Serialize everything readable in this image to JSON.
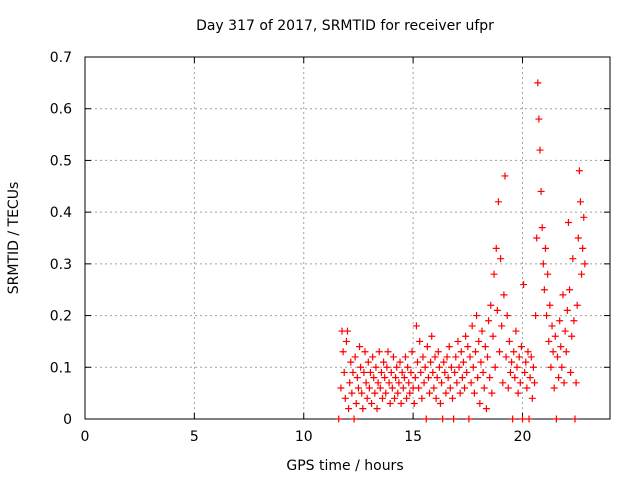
{
  "chart_data": {
    "type": "scatter",
    "title": "Day 317 of 2017, SRMTID for receiver ufpr",
    "xlabel": "GPS time / hours",
    "ylabel": "SRMTID / TECUs",
    "xlim": [
      0,
      24
    ],
    "ylim": [
      0,
      0.7
    ],
    "x_ticks": [
      "0",
      "5",
      "10",
      "15",
      "20"
    ],
    "x_tick_values": [
      0,
      5,
      10,
      15,
      20
    ],
    "y_ticks": [
      "0",
      "0.1",
      "0.2",
      "0.3",
      "0.4",
      "0.5",
      "0.6",
      "0.7"
    ],
    "y_tick_values": [
      0,
      0.1,
      0.2,
      0.3,
      0.4,
      0.5,
      0.6,
      0.7
    ],
    "grid": true,
    "marker": "+",
    "color": "#ff0000",
    "series": [
      {
        "name": "SRMTID",
        "points": [
          [
            11.6,
            0.0
          ],
          [
            11.7,
            0.06
          ],
          [
            11.75,
            0.17
          ],
          [
            11.8,
            0.13
          ],
          [
            11.85,
            0.09
          ],
          [
            11.9,
            0.04
          ],
          [
            11.95,
            0.15
          ],
          [
            12.0,
            0.17
          ],
          [
            12.05,
            0.02
          ],
          [
            12.1,
            0.07
          ],
          [
            12.15,
            0.11
          ],
          [
            12.2,
            0.05
          ],
          [
            12.25,
            0.09
          ],
          [
            12.3,
            0.0
          ],
          [
            12.35,
            0.12
          ],
          [
            12.4,
            0.03
          ],
          [
            12.45,
            0.08
          ],
          [
            12.5,
            0.06
          ],
          [
            12.55,
            0.14
          ],
          [
            12.6,
            0.1
          ],
          [
            12.65,
            0.05
          ],
          [
            12.7,
            0.02
          ],
          [
            12.75,
            0.09
          ],
          [
            12.8,
            0.13
          ],
          [
            12.85,
            0.07
          ],
          [
            12.9,
            0.04
          ],
          [
            12.95,
            0.11
          ],
          [
            13.0,
            0.06
          ],
          [
            13.05,
            0.09
          ],
          [
            13.1,
            0.03
          ],
          [
            13.15,
            0.12
          ],
          [
            13.2,
            0.08
          ],
          [
            13.25,
            0.05
          ],
          [
            13.3,
            0.1
          ],
          [
            13.35,
            0.02
          ],
          [
            13.4,
            0.07
          ],
          [
            13.45,
            0.13
          ],
          [
            13.5,
            0.06
          ],
          [
            13.55,
            0.09
          ],
          [
            13.6,
            0.04
          ],
          [
            13.65,
            0.11
          ],
          [
            13.7,
            0.08
          ],
          [
            13.75,
            0.05
          ],
          [
            13.8,
            0.1
          ],
          [
            13.85,
            0.13
          ],
          [
            13.9,
            0.07
          ],
          [
            13.95,
            0.03
          ],
          [
            14.0,
            0.09
          ],
          [
            14.05,
            0.06
          ],
          [
            14.1,
            0.12
          ],
          [
            14.15,
            0.04
          ],
          [
            14.2,
            0.08
          ],
          [
            14.25,
            0.1
          ],
          [
            14.3,
            0.05
          ],
          [
            14.35,
            0.07
          ],
          [
            14.4,
            0.11
          ],
          [
            14.45,
            0.03
          ],
          [
            14.5,
            0.09
          ],
          [
            14.55,
            0.06
          ],
          [
            14.6,
            0.08
          ],
          [
            14.65,
            0.12
          ],
          [
            14.7,
            0.04
          ],
          [
            14.75,
            0.1
          ],
          [
            14.8,
            0.07
          ],
          [
            14.85,
            0.05
          ],
          [
            14.9,
            0.09
          ],
          [
            14.95,
            0.13
          ],
          [
            15.0,
            0.06
          ],
          [
            15.05,
            0.03
          ],
          [
            15.1,
            0.08
          ],
          [
            15.15,
            0.18
          ],
          [
            15.2,
            0.11
          ],
          [
            15.25,
            0.06
          ],
          [
            15.3,
            0.15
          ],
          [
            15.35,
            0.09
          ],
          [
            15.4,
            0.04
          ],
          [
            15.45,
            0.12
          ],
          [
            15.5,
            0.07
          ],
          [
            15.55,
            0.1
          ],
          [
            15.6,
            0.0
          ],
          [
            15.65,
            0.14
          ],
          [
            15.7,
            0.08
          ],
          [
            15.75,
            0.05
          ],
          [
            15.8,
            0.11
          ],
          [
            15.85,
            0.16
          ],
          [
            15.9,
            0.09
          ],
          [
            15.95,
            0.06
          ],
          [
            16.0,
            0.12
          ],
          [
            16.05,
            0.04
          ],
          [
            16.1,
            0.08
          ],
          [
            16.15,
            0.13
          ],
          [
            16.2,
            0.1
          ],
          [
            16.25,
            0.03
          ],
          [
            16.3,
            0.07
          ],
          [
            16.35,
            0.0
          ],
          [
            16.4,
            0.11
          ],
          [
            16.45,
            0.09
          ],
          [
            16.5,
            0.05
          ],
          [
            16.55,
            0.12
          ],
          [
            16.6,
            0.08
          ],
          [
            16.65,
            0.14
          ],
          [
            16.7,
            0.06
          ],
          [
            16.75,
            0.1
          ],
          [
            16.8,
            0.04
          ],
          [
            16.85,
            0.0
          ],
          [
            16.9,
            0.09
          ],
          [
            16.95,
            0.12
          ],
          [
            17.0,
            0.07
          ],
          [
            17.05,
            0.15
          ],
          [
            17.1,
            0.1
          ],
          [
            17.15,
            0.05
          ],
          [
            17.2,
            0.13
          ],
          [
            17.25,
            0.08
          ],
          [
            17.3,
            0.11
          ],
          [
            17.35,
            0.06
          ],
          [
            17.4,
            0.16
          ],
          [
            17.45,
            0.09
          ],
          [
            17.5,
            0.14
          ],
          [
            17.55,
            0.0
          ],
          [
            17.6,
            0.12
          ],
          [
            17.65,
            0.07
          ],
          [
            17.7,
            0.18
          ],
          [
            17.75,
            0.1
          ],
          [
            17.8,
            0.05
          ],
          [
            17.85,
            0.13
          ],
          [
            17.9,
            0.2
          ],
          [
            17.95,
            0.08
          ],
          [
            18.0,
            0.15
          ],
          [
            18.05,
            0.03
          ],
          [
            18.1,
            0.11
          ],
          [
            18.15,
            0.17
          ],
          [
            18.2,
            0.09
          ],
          [
            18.25,
            0.06
          ],
          [
            18.3,
            0.14
          ],
          [
            18.35,
            0.02
          ],
          [
            18.4,
            0.12
          ],
          [
            18.45,
            0.19
          ],
          [
            18.5,
            0.08
          ],
          [
            18.55,
            0.22
          ],
          [
            18.6,
            0.05
          ],
          [
            18.65,
            0.16
          ],
          [
            18.7,
            0.28
          ],
          [
            18.75,
            0.1
          ],
          [
            18.8,
            0.33
          ],
          [
            18.85,
            0.21
          ],
          [
            18.9,
            0.42
          ],
          [
            18.95,
            0.13
          ],
          [
            19.0,
            0.31
          ],
          [
            19.05,
            0.18
          ],
          [
            19.1,
            0.07
          ],
          [
            19.15,
            0.24
          ],
          [
            19.2,
            0.47
          ],
          [
            19.25,
            0.12
          ],
          [
            19.3,
            0.2
          ],
          [
            19.35,
            0.06
          ],
          [
            19.4,
            0.15
          ],
          [
            19.45,
            0.09
          ],
          [
            19.5,
            0.11
          ],
          [
            19.55,
            0.0
          ],
          [
            19.6,
            0.13
          ],
          [
            19.65,
            0.08
          ],
          [
            19.7,
            0.17
          ],
          [
            19.75,
            0.1
          ],
          [
            19.8,
            0.05
          ],
          [
            19.85,
            0.12
          ],
          [
            19.9,
            0.07
          ],
          [
            19.95,
            0.14
          ],
          [
            20.0,
            0.0
          ],
          [
            20.05,
            0.26
          ],
          [
            20.1,
            0.09
          ],
          [
            20.15,
            0.11
          ],
          [
            20.2,
            0.06
          ],
          [
            20.25,
            0.13
          ],
          [
            20.3,
            0.0
          ],
          [
            20.35,
            0.08
          ],
          [
            20.4,
            0.12
          ],
          [
            20.45,
            0.04
          ],
          [
            20.5,
            0.1
          ],
          [
            20.55,
            0.07
          ],
          [
            20.6,
            0.2
          ],
          [
            20.65,
            0.35
          ],
          [
            20.7,
            0.65
          ],
          [
            20.75,
            0.58
          ],
          [
            20.8,
            0.52
          ],
          [
            20.85,
            0.44
          ],
          [
            20.9,
            0.37
          ],
          [
            20.95,
            0.3
          ],
          [
            21.0,
            0.25
          ],
          [
            21.05,
            0.33
          ],
          [
            21.1,
            0.2
          ],
          [
            21.15,
            0.28
          ],
          [
            21.2,
            0.15
          ],
          [
            21.25,
            0.22
          ],
          [
            21.3,
            0.1
          ],
          [
            21.35,
            0.18
          ],
          [
            21.4,
            0.13
          ],
          [
            21.45,
            0.06
          ],
          [
            21.5,
            0.16
          ],
          [
            21.55,
            0.0
          ],
          [
            21.6,
            0.12
          ],
          [
            21.65,
            0.08
          ],
          [
            21.7,
            0.19
          ],
          [
            21.75,
            0.14
          ],
          [
            21.8,
            0.1
          ],
          [
            21.85,
            0.24
          ],
          [
            21.9,
            0.07
          ],
          [
            21.95,
            0.17
          ],
          [
            22.0,
            0.13
          ],
          [
            22.05,
            0.21
          ],
          [
            22.1,
            0.38
          ],
          [
            22.15,
            0.25
          ],
          [
            22.2,
            0.09
          ],
          [
            22.25,
            0.16
          ],
          [
            22.3,
            0.31
          ],
          [
            22.35,
            0.19
          ],
          [
            22.4,
            0.0
          ],
          [
            22.45,
            0.07
          ],
          [
            22.5,
            0.22
          ],
          [
            22.55,
            0.35
          ],
          [
            22.6,
            0.48
          ],
          [
            22.65,
            0.42
          ],
          [
            22.7,
            0.28
          ],
          [
            22.75,
            0.33
          ],
          [
            22.8,
            0.39
          ],
          [
            22.85,
            0.3
          ]
        ]
      }
    ]
  }
}
